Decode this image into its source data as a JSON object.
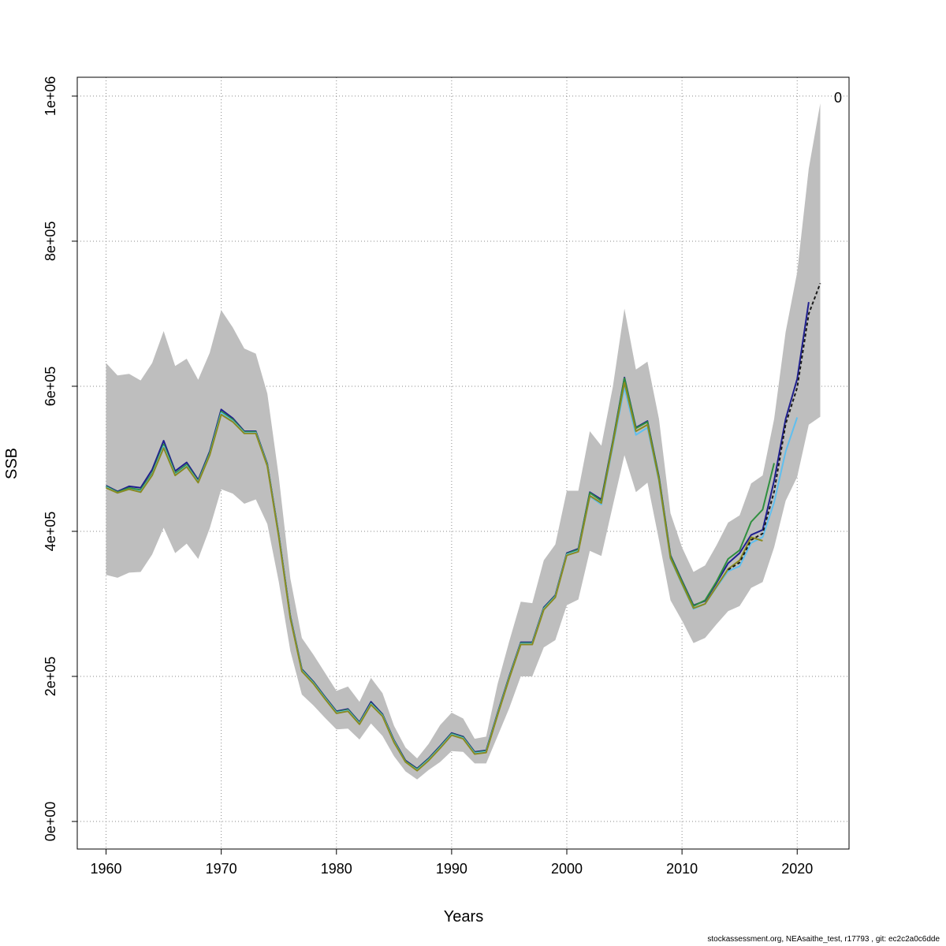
{
  "chart_data": {
    "type": "line",
    "xlabel": "Years",
    "ylabel": "SSB",
    "xlim": [
      1957.5,
      2024.5
    ],
    "ylim": [
      -38000,
      1026000
    ],
    "x_ticks": [
      1960,
      1970,
      1980,
      1990,
      2000,
      2010,
      2020
    ],
    "y_ticks": [
      0,
      200000,
      400000,
      600000,
      800000,
      1000000
    ],
    "y_tick_labels": [
      "0e+00",
      "2e+05",
      "4e+05",
      "6e+05",
      "8e+05",
      "1e+06"
    ],
    "grid": true,
    "annotation": "0",
    "colors": {
      "band": "#bebebe",
      "series": [
        "#1f1f8f",
        "#2f8f3f",
        "#5fbfef",
        "#8a8a20",
        "#1a1a1a"
      ]
    },
    "confidence_band": {
      "x": [
        1960,
        1961,
        1962,
        1963,
        1964,
        1965,
        1966,
        1967,
        1968,
        1969,
        1970,
        1971,
        1972,
        1973,
        1974,
        1975,
        1976,
        1977,
        1978,
        1979,
        1980,
        1981,
        1982,
        1983,
        1984,
        1985,
        1986,
        1987,
        1988,
        1989,
        1990,
        1991,
        1992,
        1993,
        1994,
        1995,
        1996,
        1997,
        1998,
        1999,
        2000,
        2001,
        2002,
        2003,
        2004,
        2005,
        2006,
        2007,
        2008,
        2009,
        2010,
        2011,
        2012,
        2013,
        2014,
        2015,
        2016,
        2017,
        2018,
        2019,
        2020,
        2021,
        2022
      ],
      "upper": [
        632000,
        615000,
        617000,
        608000,
        632000,
        676000,
        628000,
        638000,
        609000,
        646000,
        705000,
        681000,
        652000,
        645000,
        590000,
        475000,
        335000,
        253000,
        230000,
        205000,
        180000,
        186000,
        165000,
        198000,
        177000,
        132000,
        102000,
        87000,
        107000,
        133000,
        150000,
        142000,
        114000,
        117000,
        190000,
        248000,
        303000,
        301000,
        360000,
        382000,
        456000,
        456000,
        538000,
        518000,
        600000,
        707000,
        623000,
        634000,
        555000,
        425000,
        378000,
        344000,
        353000,
        381000,
        412000,
        422000,
        466000,
        477000,
        555000,
        675000,
        757000,
        900000,
        990000
      ],
      "lower": [
        340000,
        336000,
        343000,
        344000,
        368000,
        405000,
        370000,
        383000,
        362000,
        404000,
        458000,
        452000,
        438000,
        444000,
        410000,
        330000,
        235000,
        175000,
        160000,
        143000,
        127000,
        128000,
        113000,
        135000,
        118000,
        90000,
        69000,
        58000,
        71000,
        82000,
        97000,
        96000,
        80000,
        80000,
        118000,
        156000,
        200000,
        200000,
        240000,
        250000,
        298000,
        306000,
        373000,
        366000,
        436000,
        505000,
        454000,
        467000,
        388000,
        305000,
        277000,
        246000,
        253000,
        272000,
        290000,
        297000,
        322000,
        330000,
        378000,
        442000,
        475000,
        547000,
        558000
      ]
    },
    "series": [
      {
        "x": [
          1960,
          1961,
          1962,
          1963,
          1964,
          1965,
          1966,
          1967,
          1968,
          1969,
          1970,
          1971,
          1972,
          1973,
          1974,
          1975,
          1976,
          1977,
          1978,
          1979,
          1980,
          1981,
          1982,
          1983,
          1984,
          1985,
          1986,
          1987,
          1988,
          1989,
          1990,
          1991,
          1992,
          1993,
          1994,
          1995,
          1996,
          1997,
          1998,
          1999,
          2000,
          2001,
          2002,
          2003,
          2004,
          2005,
          2006,
          2007,
          2008,
          2009,
          2010,
          2011,
          2012,
          2013,
          2014,
          2015,
          2016,
          2017,
          2018,
          2019,
          2020,
          2021
        ],
        "y": [
          463000,
          455000,
          462000,
          460000,
          485000,
          525000,
          483000,
          495000,
          471000,
          510000,
          568000,
          556000,
          538000,
          538000,
          493000,
          395000,
          283000,
          210000,
          193000,
          172000,
          152000,
          155000,
          137000,
          165000,
          148000,
          112000,
          84000,
          73000,
          87000,
          104000,
          122000,
          117000,
          96000,
          98000,
          150000,
          200000,
          247000,
          247000,
          295000,
          312000,
          370000,
          376000,
          454000,
          444000,
          525000,
          612000,
          543000,
          552000,
          475000,
          367000,
          332000,
          298000,
          304000,
          329000,
          356000,
          370000,
          395000,
          402000,
          470000,
          555000,
          610000,
          716000
        ]
      },
      {
        "x": [
          1960,
          1961,
          1962,
          1963,
          1964,
          1965,
          1966,
          1967,
          1968,
          1969,
          1970,
          1971,
          1972,
          1973,
          1974,
          1975,
          1976,
          1977,
          1978,
          1979,
          1980,
          1981,
          1982,
          1983,
          1984,
          1985,
          1986,
          1987,
          1988,
          1989,
          1990,
          1991,
          1992,
          1993,
          1994,
          1995,
          1996,
          1997,
          1998,
          1999,
          2000,
          2001,
          2002,
          2003,
          2004,
          2005,
          2006,
          2007,
          2008,
          2009,
          2010,
          2011,
          2012,
          2013,
          2014,
          2015,
          2016,
          2017,
          2018
        ],
        "y": [
          462000,
          454000,
          460000,
          457000,
          480000,
          520000,
          480000,
          492000,
          469000,
          508000,
          565000,
          554000,
          537000,
          537000,
          492000,
          394000,
          282000,
          209000,
          192000,
          171000,
          151000,
          154000,
          136000,
          163000,
          147000,
          111000,
          83000,
          72000,
          86000,
          103000,
          121000,
          116000,
          95000,
          97000,
          149000,
          199000,
          246000,
          246000,
          294000,
          311000,
          369000,
          375000,
          453000,
          442000,
          524000,
          611000,
          542000,
          551000,
          474000,
          366000,
          331000,
          297000,
          305000,
          331000,
          362000,
          374000,
          413000,
          430000,
          494000
        ]
      },
      {
        "x": [
          1960,
          1961,
          1962,
          1963,
          1964,
          1965,
          1966,
          1967,
          1968,
          1969,
          1970,
          1971,
          1972,
          1973,
          1974,
          1975,
          1976,
          1977,
          1978,
          1979,
          1980,
          1981,
          1982,
          1983,
          1984,
          1985,
          1986,
          1987,
          1988,
          1989,
          1990,
          1991,
          1992,
          1993,
          1994,
          1995,
          1996,
          1997,
          1998,
          1999,
          2000,
          2001,
          2002,
          2003,
          2004,
          2005,
          2006,
          2007,
          2008,
          2009,
          2010,
          2011,
          2012,
          2013,
          2014,
          2015,
          2016,
          2017,
          2018,
          2019,
          2020
        ],
        "y": [
          461000,
          453000,
          458000,
          455000,
          478000,
          517000,
          478000,
          490000,
          468000,
          506000,
          563000,
          552000,
          536000,
          536000,
          491000,
          393000,
          281000,
          208000,
          191000,
          170000,
          150000,
          153000,
          135000,
          162000,
          146000,
          110000,
          82000,
          71000,
          85000,
          102000,
          120000,
          115000,
          94000,
          96000,
          148000,
          198000,
          245000,
          245000,
          293000,
          310000,
          368000,
          373000,
          448000,
          437000,
          518000,
          598000,
          533000,
          543000,
          469000,
          362000,
          327000,
          293000,
          300000,
          323000,
          345000,
          352000,
          384000,
          392000,
          440000,
          510000,
          557000
        ]
      },
      {
        "x": [
          1960,
          1961,
          1962,
          1963,
          1964,
          1965,
          1966,
          1967,
          1968,
          1969,
          1970,
          1971,
          1972,
          1973,
          1974,
          1975,
          1976,
          1977,
          1978,
          1979,
          1980,
          1981,
          1982,
          1983,
          1984,
          1985,
          1986,
          1987,
          1988,
          1989,
          1990,
          1991,
          1992,
          1993,
          1994,
          1995,
          1996,
          1997,
          1998,
          1999,
          2000,
          2001,
          2002,
          2003,
          2004,
          2005,
          2006,
          2007,
          2008,
          2009,
          2010,
          2011,
          2012,
          2013,
          2014,
          2015,
          2016,
          2017
        ],
        "y": [
          460000,
          453000,
          458000,
          454000,
          477000,
          515000,
          477000,
          489000,
          467000,
          505000,
          561000,
          551000,
          535000,
          535000,
          490000,
          392000,
          280000,
          207000,
          190000,
          169000,
          149000,
          152000,
          134000,
          161000,
          145000,
          109000,
          82000,
          70000,
          84000,
          101000,
          119000,
          114000,
          93000,
          95000,
          147000,
          197000,
          244000,
          244000,
          292000,
          309000,
          367000,
          372000,
          449000,
          439000,
          521000,
          605000,
          538000,
          547000,
          471000,
          363000,
          328000,
          294000,
          300000,
          324000,
          348000,
          360000,
          392000,
          387000
        ]
      },
      {
        "x": [
          2014,
          2015,
          2016,
          2017,
          2018,
          2019,
          2020,
          2021,
          2022
        ],
        "y": [
          347000,
          357000,
          388000,
          397000,
          455000,
          548000,
          598000,
          700000,
          742000
        ],
        "dashed": true
      }
    ]
  },
  "footer": "stockassessment.org, NEAsaithe_test, r17793 , git: ec2c2a0c6dde"
}
